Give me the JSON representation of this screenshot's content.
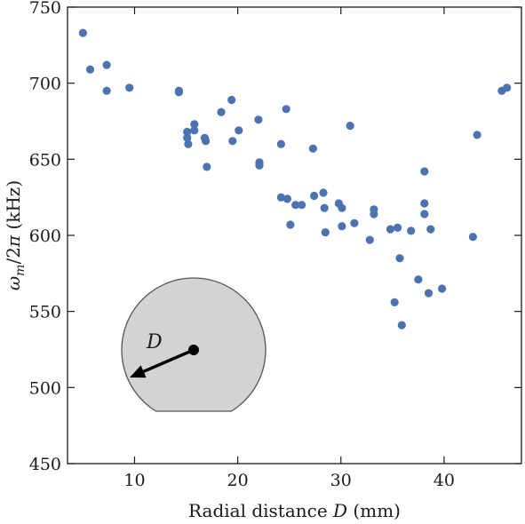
{
  "chart_data": {
    "type": "scatter",
    "title": "",
    "xlabel": "Radial distance D (mm)",
    "ylabel": "ω_m/2π (kHz)",
    "xlim": [
      3.5,
      47.5
    ],
    "ylim": [
      450,
      750
    ],
    "xticks": [
      10,
      20,
      30,
      40
    ],
    "yticks": [
      450,
      500,
      550,
      600,
      650,
      700,
      750
    ],
    "grid": false,
    "legend": "none",
    "marker_color": "#4c72b0",
    "series": [
      {
        "x": [
          5.0,
          5.7,
          7.3,
          7.3,
          9.5,
          14.3,
          14.3,
          15.1,
          15.1,
          15.2,
          15.8,
          15.8,
          16.8,
          16.9,
          17.0,
          18.4,
          19.4,
          19.5,
          20.1,
          22.0,
          22.1,
          22.1,
          24.2,
          24.7,
          24.2,
          24.8,
          25.1,
          25.6,
          26.2,
          27.3,
          27.4,
          28.3,
          28.4,
          28.5,
          29.8,
          30.1,
          30.1,
          30.9,
          31.3,
          32.8,
          33.2,
          33.2,
          34.8,
          35.2,
          35.5,
          35.7,
          35.9,
          36.8,
          37.5,
          38.1,
          38.1,
          38.1,
          38.5,
          38.7,
          39.8,
          42.8,
          43.2,
          45.6,
          46.1
        ],
        "y": [
          733,
          709,
          712,
          695,
          697,
          695,
          694,
          668,
          664,
          660,
          673,
          669,
          664,
          662,
          645,
          681,
          689,
          662,
          669,
          676,
          648,
          646,
          660,
          683,
          625,
          624,
          607,
          620,
          620,
          657,
          626,
          628,
          618,
          602,
          621,
          618,
          606,
          672,
          608,
          597,
          617,
          614,
          604,
          556,
          605,
          585,
          541,
          603,
          571,
          642,
          621,
          614,
          562,
          604,
          565,
          599,
          666,
          695,
          697
        ]
      }
    ],
    "inset": {
      "label": "D"
    }
  }
}
